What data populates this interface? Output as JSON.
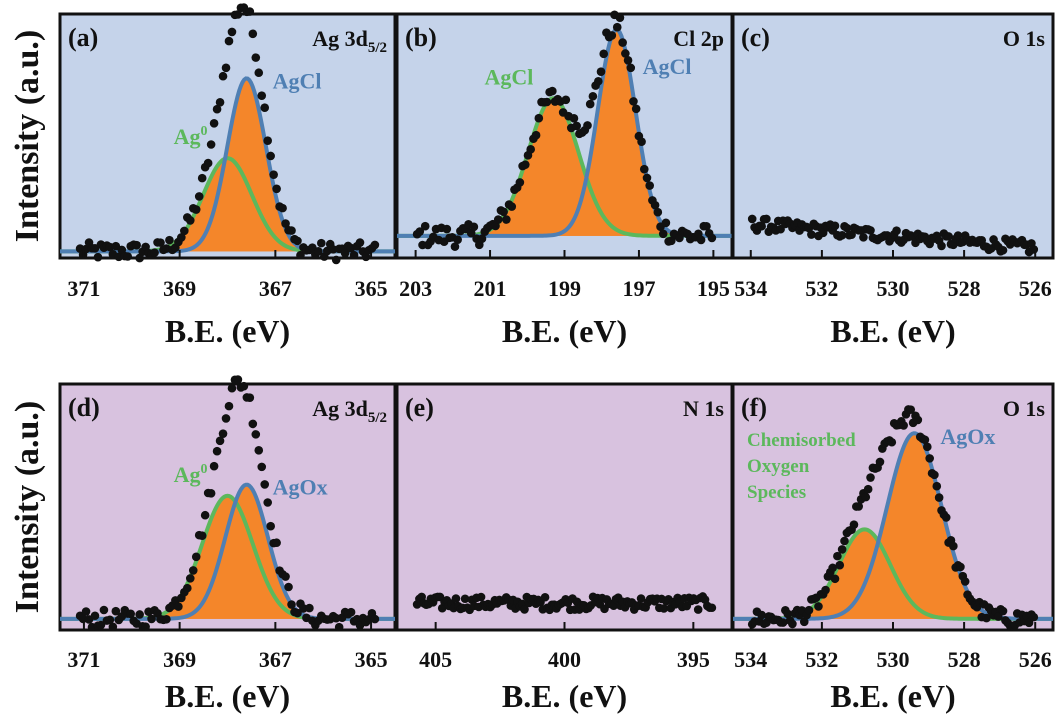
{
  "ylabel": "Intensity (a.u.)",
  "colors": {
    "row1_bg": "#c5d3ea",
    "row2_bg": "#d8c2df",
    "fill": "#f4862a",
    "agcl": "#4f7fb3",
    "ag0": "#5cb85c",
    "dots": "#111111"
  },
  "chart_data": [
    {
      "type": "scatter",
      "panel": "(a)",
      "element": "Ag 3d",
      "element_sub": "5/2",
      "xlabel": "B.E. (eV)",
      "xticks": [
        "371",
        "369",
        "367",
        "365"
      ],
      "xlim": [
        371.5,
        364.5
      ],
      "ylim": [
        0,
        1.1
      ],
      "components": [
        {
          "name": "Ag0",
          "label": "Ag",
          "label_sup": "0",
          "color": "#5cb85c",
          "center": 368.0,
          "fwhm": 1.2,
          "amp": 0.42
        },
        {
          "name": "AgCl",
          "label": "AgCl",
          "color": "#4f7fb3",
          "center": 367.6,
          "fwhm": 0.95,
          "amp": 0.78
        }
      ],
      "baseline": 0.03,
      "noise": 0.04,
      "points": 100
    },
    {
      "type": "scatter",
      "panel": "(b)",
      "element": "Cl 2p",
      "xlabel": "B.E. (eV)",
      "xticks": [
        "203",
        "201",
        "199",
        "197",
        "195"
      ],
      "xlim": [
        203.5,
        194.5
      ],
      "ylim": [
        0,
        1.1
      ],
      "components": [
        {
          "name": "AgCl",
          "label": "AgCl",
          "color": "#5cb85c",
          "center": 199.3,
          "fwhm": 1.6,
          "amp": 0.62
        },
        {
          "name": "AgCl",
          "label": "AgCl",
          "color": "#4f7fb3",
          "center": 197.6,
          "fwhm": 1.2,
          "amp": 0.93
        }
      ],
      "baseline": 0.1,
      "noise": 0.05,
      "points": 110
    },
    {
      "type": "scatter",
      "panel": "(c)",
      "element": "O 1s",
      "xlabel": "B.E. (eV)",
      "xticks": [
        "534",
        "532",
        "530",
        "528",
        "526"
      ],
      "xlim": [
        534.5,
        525.5
      ],
      "ylim": [
        0,
        1.1
      ],
      "components": [],
      "baseline": 0.1,
      "slope": 0.06,
      "noise": 0.03,
      "points": 120
    },
    {
      "type": "scatter",
      "panel": "(d)",
      "element": "Ag 3d",
      "element_sub": "5/2",
      "xlabel": "B.E. (eV)",
      "xticks": [
        "371",
        "369",
        "367",
        "365"
      ],
      "xlim": [
        371.5,
        364.5
      ],
      "ylim": [
        0,
        1.1
      ],
      "components": [
        {
          "name": "Ag0",
          "label": "Ag",
          "label_sup": "0",
          "color": "#5cb85c",
          "center": 368.0,
          "fwhm": 1.25,
          "amp": 0.55
        },
        {
          "name": "AgOx",
          "label": "AgOx",
          "color": "#4f7fb3",
          "center": 367.6,
          "fwhm": 1.05,
          "amp": 0.6
        }
      ],
      "baseline": 0.05,
      "noise": 0.04,
      "points": 100
    },
    {
      "type": "scatter",
      "panel": "(e)",
      "element": "N 1s",
      "xlabel": "B.E. (eV)",
      "xticks": [
        "405",
        "400",
        "395"
      ],
      "xlim": [
        406.5,
        393.5
      ],
      "ylim": [
        0,
        1.1
      ],
      "components": [],
      "baseline": 0.12,
      "noise": 0.03,
      "points": 130
    },
    {
      "type": "scatter",
      "panel": "(f)",
      "element": "O 1s",
      "xlabel": "B.E. (eV)",
      "xticks": [
        "534",
        "532",
        "530",
        "528",
        "526"
      ],
      "xlim": [
        534.5,
        525.5
      ],
      "ylim": [
        0,
        1.1
      ],
      "components": [
        {
          "name": "Chemisorbed Oxygen Species",
          "label_lines": [
            "Chemisorbed",
            "Oxygen",
            "Species"
          ],
          "color": "#5cb85c",
          "center": 530.8,
          "fwhm": 1.7,
          "amp": 0.4
        },
        {
          "name": "AgOx",
          "label": "AgOx",
          "color": "#4f7fb3",
          "center": 529.4,
          "fwhm": 1.8,
          "amp": 0.83
        }
      ],
      "baseline": 0.05,
      "noise": 0.04,
      "points": 120
    }
  ]
}
